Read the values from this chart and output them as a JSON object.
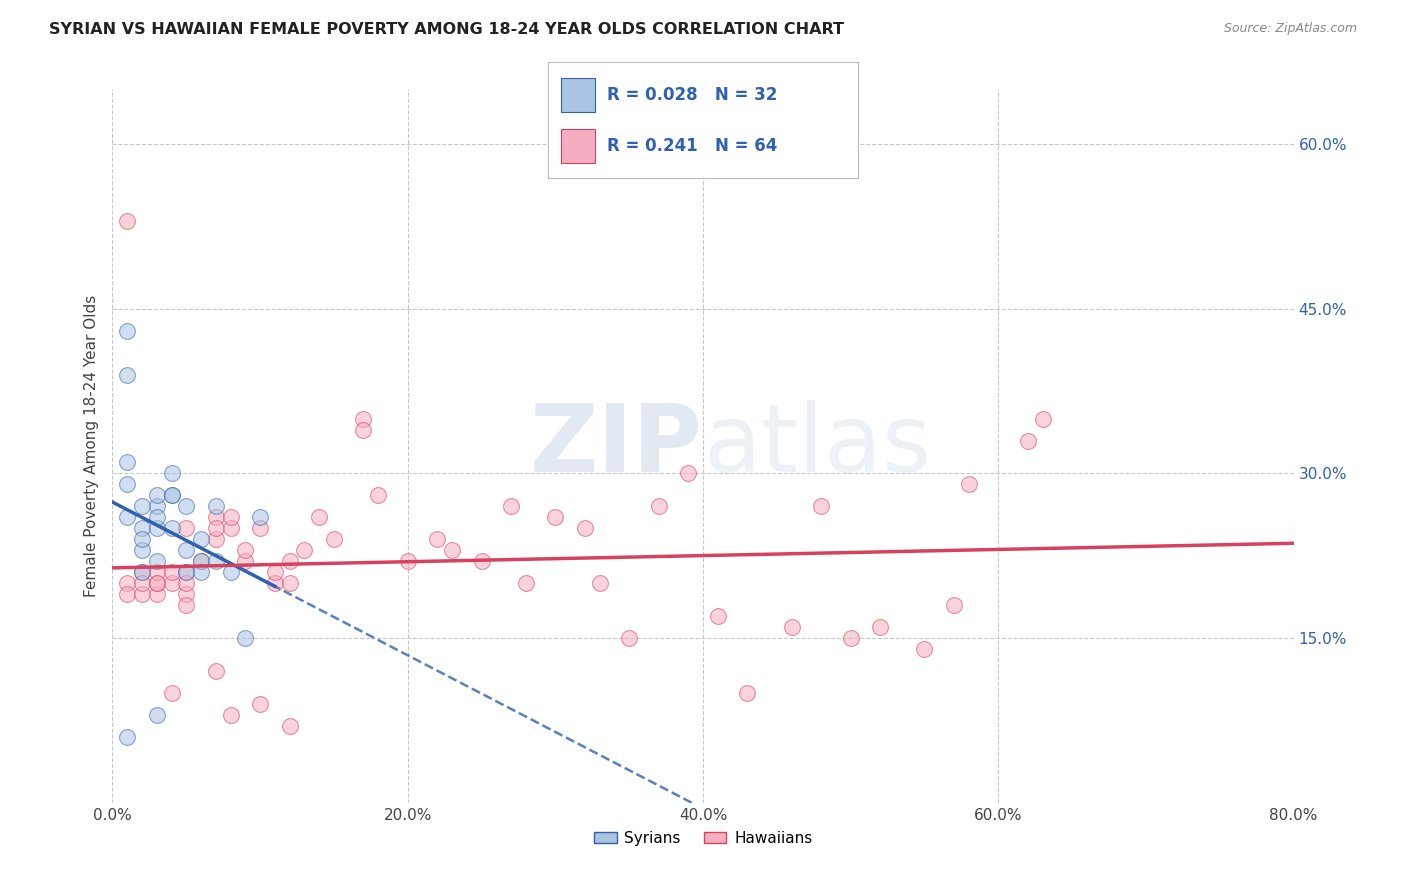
{
  "title": "SYRIAN VS HAWAIIAN FEMALE POVERTY AMONG 18-24 YEAR OLDS CORRELATION CHART",
  "source": "Source: ZipAtlas.com",
  "ylabel": "Female Poverty Among 18-24 Year Olds",
  "xlim": [
    0.0,
    0.8
  ],
  "ylim": [
    0.0,
    0.65
  ],
  "xtick_labels": [
    "0.0%",
    "20.0%",
    "40.0%",
    "60.0%",
    "80.0%"
  ],
  "xtick_vals": [
    0.0,
    0.2,
    0.4,
    0.6,
    0.8
  ],
  "ytick_labels_right": [
    "15.0%",
    "30.0%",
    "45.0%",
    "60.0%"
  ],
  "ytick_vals_right": [
    0.15,
    0.3,
    0.45,
    0.6
  ],
  "background_color": "#ffffff",
  "grid_color": "#c8c8c8",
  "syrian_color": "#aac4e2",
  "hawaiian_color": "#f5aec0",
  "syrian_line_color": "#3060b0",
  "hawaiian_line_color": "#d84060",
  "syrian_R": 0.028,
  "syrian_N": 32,
  "hawaiian_R": 0.241,
  "hawaiian_N": 64,
  "legend_text_color": "#3060b0",
  "watermark_zip": "ZIP",
  "watermark_atlas": "atlas",
  "syrians_label": "Syrians",
  "hawaiians_label": "Hawaiians",
  "syrian_x": [
    0.01,
    0.01,
    0.01,
    0.02,
    0.02,
    0.02,
    0.02,
    0.02,
    0.03,
    0.03,
    0.03,
    0.03,
    0.03,
    0.04,
    0.04,
    0.04,
    0.04,
    0.05,
    0.05,
    0.05,
    0.06,
    0.06,
    0.06,
    0.07,
    0.07,
    0.08,
    0.09,
    0.1,
    0.01,
    0.01,
    0.01,
    0.03
  ],
  "syrian_y": [
    0.26,
    0.29,
    0.31,
    0.25,
    0.27,
    0.23,
    0.21,
    0.24,
    0.25,
    0.27,
    0.28,
    0.26,
    0.22,
    0.25,
    0.28,
    0.28,
    0.3,
    0.23,
    0.21,
    0.27,
    0.22,
    0.21,
    0.24,
    0.22,
    0.27,
    0.21,
    0.15,
    0.26,
    0.43,
    0.39,
    0.06,
    0.08
  ],
  "hawaiian_x": [
    0.01,
    0.01,
    0.02,
    0.02,
    0.02,
    0.03,
    0.03,
    0.03,
    0.03,
    0.04,
    0.04,
    0.05,
    0.05,
    0.05,
    0.05,
    0.05,
    0.06,
    0.07,
    0.07,
    0.07,
    0.08,
    0.08,
    0.09,
    0.09,
    0.1,
    0.11,
    0.11,
    0.12,
    0.12,
    0.13,
    0.14,
    0.15,
    0.17,
    0.17,
    0.18,
    0.2,
    0.22,
    0.23,
    0.25,
    0.27,
    0.28,
    0.3,
    0.32,
    0.33,
    0.35,
    0.37,
    0.39,
    0.41,
    0.43,
    0.46,
    0.48,
    0.5,
    0.52,
    0.55,
    0.57,
    0.58,
    0.62,
    0.63,
    0.01,
    0.04,
    0.07,
    0.08,
    0.1,
    0.12
  ],
  "hawaiian_y": [
    0.2,
    0.19,
    0.21,
    0.19,
    0.2,
    0.19,
    0.2,
    0.21,
    0.2,
    0.2,
    0.21,
    0.19,
    0.21,
    0.18,
    0.2,
    0.25,
    0.22,
    0.24,
    0.26,
    0.25,
    0.25,
    0.26,
    0.22,
    0.23,
    0.25,
    0.2,
    0.21,
    0.22,
    0.2,
    0.23,
    0.26,
    0.24,
    0.35,
    0.34,
    0.28,
    0.22,
    0.24,
    0.23,
    0.22,
    0.27,
    0.2,
    0.26,
    0.25,
    0.2,
    0.15,
    0.27,
    0.3,
    0.17,
    0.1,
    0.16,
    0.27,
    0.15,
    0.16,
    0.14,
    0.18,
    0.29,
    0.33,
    0.35,
    0.53,
    0.1,
    0.12,
    0.08,
    0.09,
    0.07
  ]
}
